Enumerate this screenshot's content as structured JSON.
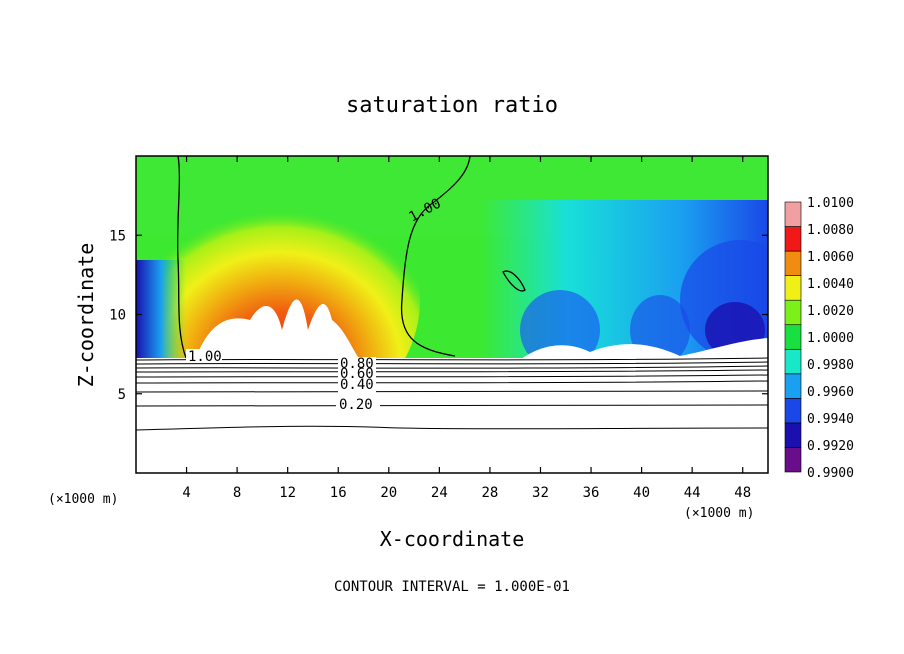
{
  "chart_data": {
    "type": "heatmap",
    "title": "saturation ratio",
    "xlabel": "X-coordinate",
    "ylabel": "Z-coordinate",
    "x_unit": "(×1000 m)",
    "xlim": [
      0,
      50
    ],
    "ylim": [
      0,
      20
    ],
    "x_ticks": [
      4,
      8,
      12,
      16,
      20,
      24,
      28,
      32,
      36,
      40,
      44,
      48
    ],
    "y_ticks": [
      5,
      10,
      15
    ],
    "colorbar": {
      "levels": [
        0.99,
        0.992,
        0.994,
        0.996,
        0.998,
        1.0,
        1.002,
        1.004,
        1.006,
        1.008,
        1.01
      ],
      "labels": [
        "1.0100",
        "1.0080",
        "1.0060",
        "1.0040",
        "1.0020",
        "1.0000",
        "0.9980",
        "0.9960",
        "0.9940",
        "0.9920",
        "0.9900"
      ],
      "colors": [
        "#6a0d8a",
        "#1a10b0",
        "#1a48e8",
        "#1aa0f0",
        "#18e8c8",
        "#18e040",
        "#7cf018",
        "#f0f018",
        "#f08c10",
        "#f01818",
        "#f0a0a0"
      ]
    },
    "contour_labels": [
      "1.00",
      "1.00",
      "0.80",
      "0.60",
      "0.40",
      "0.20"
    ],
    "contour_interval_text": "CONTOUR INTERVAL = 1.000E-01"
  }
}
